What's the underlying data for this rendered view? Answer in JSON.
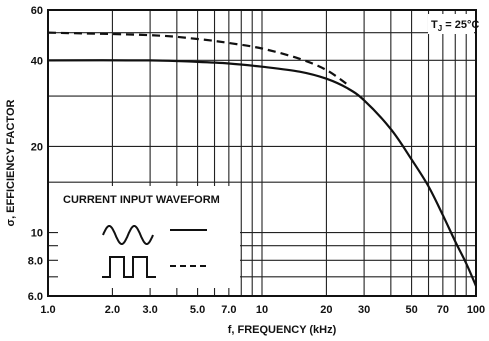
{
  "chart_data": {
    "type": "line",
    "x_scale": "log",
    "y_scale": "log",
    "xlim": [
      1.0,
      100
    ],
    "ylim": [
      6.0,
      60
    ],
    "grid": true,
    "xlabel": "f, FREQUENCY (kHz)",
    "ylabel": "σ, EFFICIENCY FACTOR",
    "x_ticks": [
      {
        "value": 1.0,
        "label": "1.0"
      },
      {
        "value": 2.0,
        "label": "2.0"
      },
      {
        "value": 3.0,
        "label": "3.0"
      },
      {
        "value": 5.0,
        "label": "5.0"
      },
      {
        "value": 7.0,
        "label": "7.0"
      },
      {
        "value": 10,
        "label": "10"
      },
      {
        "value": 20,
        "label": "20"
      },
      {
        "value": 30,
        "label": "30"
      },
      {
        "value": 50,
        "label": "50"
      },
      {
        "value": 70,
        "label": "70"
      },
      {
        "value": 100,
        "label": "100"
      }
    ],
    "y_ticks": [
      {
        "value": 6.0,
        "label": "6.0"
      },
      {
        "value": 8.0,
        "label": "8.0"
      },
      {
        "value": 10,
        "label": "10"
      },
      {
        "value": 20,
        "label": "20"
      },
      {
        "value": 40,
        "label": "40"
      },
      {
        "value": 60,
        "label": "60"
      }
    ],
    "x_grid": [
      1,
      2,
      3,
      4,
      5,
      6,
      7,
      8,
      9,
      10,
      20,
      30,
      40,
      50,
      60,
      70,
      80,
      90,
      100
    ],
    "y_grid": [
      6,
      7,
      8,
      9,
      10,
      15,
      20,
      30,
      40,
      50,
      60
    ],
    "annotation": {
      "main": "T",
      "sub": "J",
      "rest": " = 25°C"
    },
    "legend": {
      "title": "CURRENT INPUT WAVEFORM",
      "entries": [
        {
          "waveform": "sine",
          "line_style": "solid"
        },
        {
          "waveform": "square",
          "line_style": "dashed"
        }
      ]
    },
    "series": [
      {
        "waveform": "sine",
        "line_style": "solid",
        "points": [
          [
            1.0,
            40.0
          ],
          [
            3.0,
            40.0
          ],
          [
            5.0,
            39.5
          ],
          [
            7.0,
            39.0
          ],
          [
            10,
            38.0
          ],
          [
            15,
            36.5
          ],
          [
            20,
            34.5
          ],
          [
            25,
            32.0
          ],
          [
            30,
            29.0
          ],
          [
            40,
            23.0
          ],
          [
            50,
            18.0
          ],
          [
            60,
            14.5
          ],
          [
            70,
            11.5
          ],
          [
            80,
            9.3
          ],
          [
            90,
            7.8
          ],
          [
            100,
            6.5
          ]
        ]
      },
      {
        "waveform": "square",
        "line_style": "dashed",
        "points": [
          [
            1.0,
            50.0
          ],
          [
            3.0,
            49.0
          ],
          [
            5.0,
            47.5
          ],
          [
            7.0,
            46.0
          ],
          [
            10,
            44.0
          ],
          [
            15,
            40.5
          ],
          [
            20,
            37.0
          ],
          [
            25,
            33.0
          ]
        ]
      }
    ]
  }
}
